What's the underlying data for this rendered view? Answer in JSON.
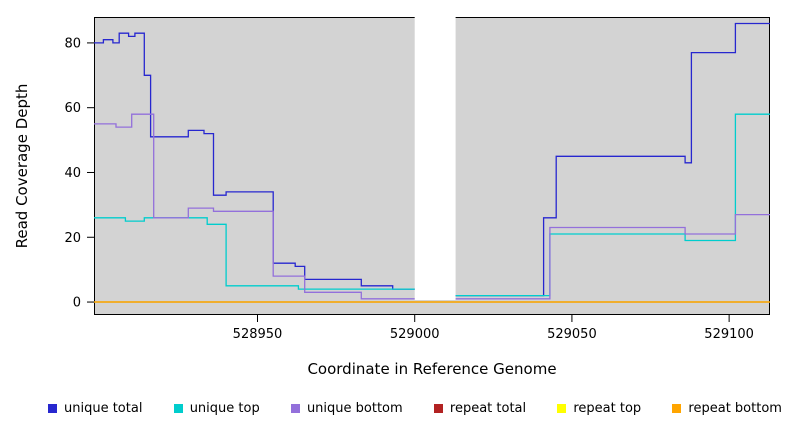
{
  "chart_data": {
    "type": "line",
    "subtype": "step",
    "title": "",
    "xlabel": "Coordinate in Reference Genome",
    "ylabel": "Read Coverage Depth",
    "xlim": [
      528898,
      529113
    ],
    "ylim": [
      -4,
      88
    ],
    "x_ticks": [
      528950,
      529000,
      529050,
      529100
    ],
    "y_ticks": [
      0,
      20,
      40,
      60,
      80
    ],
    "grid": false,
    "legend_position": "bottom",
    "plot_background": "#d3d3d3",
    "gap_region": {
      "x_start": 529000,
      "x_end": 529013
    },
    "series": [
      {
        "name": "unique total",
        "color": "#2727cf",
        "segments": [
          {
            "points": [
              [
                528898,
                80
              ],
              [
                528901,
                81
              ],
              [
                528904,
                80
              ],
              [
                528906,
                83
              ],
              [
                528909,
                82
              ],
              [
                528911,
                83
              ],
              [
                528914,
                70
              ],
              [
                528916,
                51
              ],
              [
                528928,
                53
              ],
              [
                528933,
                52
              ],
              [
                528936,
                33
              ],
              [
                528940,
                34
              ],
              [
                528955,
                12
              ],
              [
                528962,
                11
              ],
              [
                528965,
                7
              ],
              [
                528983,
                5
              ],
              [
                528993,
                4
              ]
            ],
            "end": 529000
          },
          {
            "points": [
              [
                529013,
                2
              ],
              [
                529041,
                26
              ],
              [
                529045,
                45
              ],
              [
                529086,
                43
              ],
              [
                529088,
                77
              ],
              [
                529102,
                86
              ]
            ],
            "end": 529113
          }
        ]
      },
      {
        "name": "unique top",
        "color": "#00cdcd",
        "segments": [
          {
            "points": [
              [
                528898,
                26
              ],
              [
                528908,
                25
              ],
              [
                528914,
                26
              ],
              [
                528934,
                24
              ],
              [
                528940,
                5
              ],
              [
                528963,
                4
              ]
            ],
            "end": 529000
          },
          {
            "points": [
              [
                529013,
                2
              ],
              [
                529043,
                21
              ],
              [
                529086,
                19
              ],
              [
                529102,
                58
              ]
            ],
            "end": 529113
          }
        ]
      },
      {
        "name": "unique bottom",
        "color": "#9370db",
        "segments": [
          {
            "points": [
              [
                528898,
                55
              ],
              [
                528905,
                54
              ],
              [
                528910,
                58
              ],
              [
                528917,
                26
              ],
              [
                528928,
                29
              ],
              [
                528936,
                28
              ],
              [
                528955,
                8
              ],
              [
                528965,
                3
              ],
              [
                528983,
                1
              ]
            ],
            "end": 529000
          },
          {
            "points": [
              [
                529013,
                1
              ],
              [
                529043,
                23
              ],
              [
                529086,
                21
              ],
              [
                529102,
                27
              ]
            ],
            "end": 529113
          }
        ]
      },
      {
        "name": "repeat total",
        "color": "#b22222",
        "segments": [
          {
            "points": [
              [
                528898,
                0
              ]
            ],
            "end": 529113
          }
        ]
      },
      {
        "name": "repeat top",
        "color": "#ffff00",
        "segments": [
          {
            "points": [
              [
                528898,
                0
              ]
            ],
            "end": 529113
          }
        ]
      },
      {
        "name": "repeat bottom",
        "color": "#ffa500",
        "segments": [
          {
            "points": [
              [
                528898,
                0
              ]
            ],
            "end": 529113
          }
        ]
      }
    ]
  },
  "legend": {
    "items": [
      {
        "label": "unique total",
        "color": "#2727cf"
      },
      {
        "label": "unique top",
        "color": "#00cdcd"
      },
      {
        "label": "unique bottom",
        "color": "#9370db"
      },
      {
        "label": "repeat total",
        "color": "#b22222"
      },
      {
        "label": "repeat top",
        "color": "#ffff00"
      },
      {
        "label": "repeat bottom",
        "color": "#ffa500"
      }
    ]
  }
}
